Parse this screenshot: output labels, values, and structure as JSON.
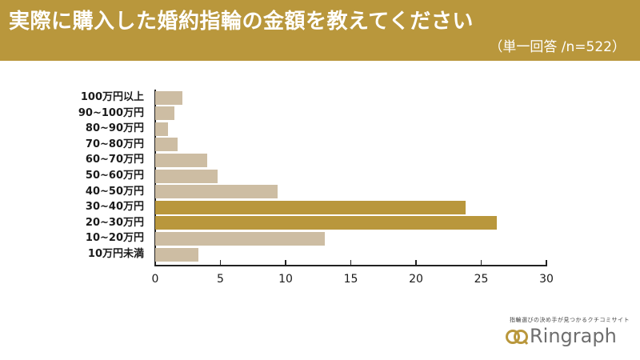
{
  "header": {
    "title": "実際に購入した婚約指輪の金額を教えてください",
    "subtitle": "（単一回答 /n=522）"
  },
  "colors": {
    "accent": "#b9973c",
    "bar_base": "#cdbda3",
    "header_bg": "#b9973c"
  },
  "chart_data": {
    "type": "bar",
    "orientation": "horizontal",
    "title": "実際に購入した婚約指輪の金額を教えてください",
    "subtitle": "（単一回答 /n=522）",
    "categories": [
      "100万円以上",
      "90~100万円",
      "80~90万円",
      "70~80万円",
      "60~70万円",
      "50~60万円",
      "40~50万円",
      "30~40万円",
      "20~30万円",
      "10~20万円",
      "10万円未満"
    ],
    "values": [
      2.1,
      1.5,
      1.0,
      1.7,
      4.0,
      4.8,
      9.4,
      23.8,
      26.2,
      13.0,
      3.3
    ],
    "highlighted": [
      false,
      false,
      false,
      false,
      false,
      false,
      false,
      true,
      true,
      false,
      false
    ],
    "xlabel": "",
    "ylabel": "",
    "xlim": [
      0,
      30
    ],
    "xticks": [
      "0",
      "5",
      "10",
      "15",
      "20",
      "25",
      "30"
    ],
    "grid": false,
    "legend": "none"
  },
  "logo": {
    "tagline": "指輪選びの決め手が見つかるクチコミサイト",
    "name": "Ringraph"
  }
}
